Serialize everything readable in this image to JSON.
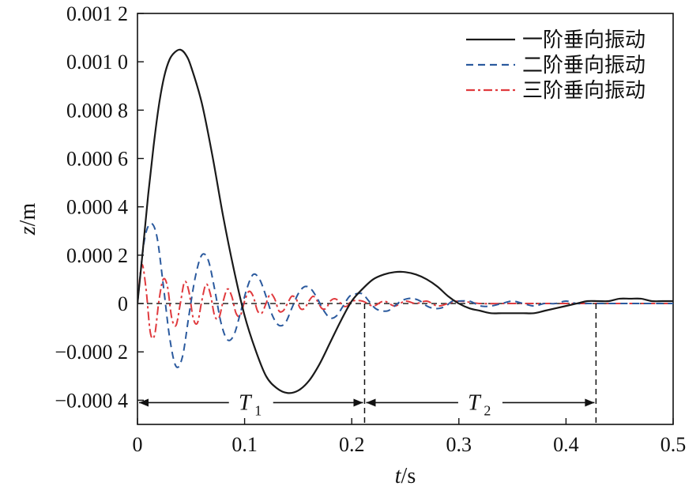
{
  "chart_data": {
    "type": "line",
    "xlabel": "t/s",
    "ylabel": "z/m",
    "xlim": [
      0,
      0.5
    ],
    "ylim": [
      -0.0005,
      0.0012
    ],
    "xticks": [
      0,
      0.1,
      0.2,
      0.3,
      0.4,
      0.5
    ],
    "xtick_labels": [
      "0",
      "0.1",
      "0.2",
      "0.3",
      "0.4",
      "0.5"
    ],
    "yticks": [
      -0.0004,
      -0.0002,
      0,
      0.0002,
      0.0004,
      0.0006,
      0.0008,
      0.001,
      0.0012
    ],
    "ytick_labels": [
      "−0.000 4",
      "−0.000 2",
      "0",
      "0.000 2",
      "0.000 4",
      "0.000 6",
      "0.000 8",
      "0.001 0",
      "0.001 2"
    ],
    "grid": false,
    "legend_position": "top-right",
    "zero_line": true,
    "series": [
      {
        "name": "一阶垂向振动",
        "color": "#1a1a1a",
        "style": "solid",
        "x": [
          0,
          0.005,
          0.01,
          0.015,
          0.02,
          0.025,
          0.03,
          0.035,
          0.04,
          0.045,
          0.05,
          0.06,
          0.07,
          0.08,
          0.09,
          0.1,
          0.11,
          0.12,
          0.13,
          0.14,
          0.15,
          0.16,
          0.17,
          0.18,
          0.19,
          0.2,
          0.21,
          0.22,
          0.23,
          0.24,
          0.25,
          0.26,
          0.27,
          0.28,
          0.29,
          0.3,
          0.31,
          0.32,
          0.33,
          0.34,
          0.35,
          0.36,
          0.37,
          0.38,
          0.39,
          0.4,
          0.41,
          0.42,
          0.43,
          0.44,
          0.45,
          0.46,
          0.47,
          0.48,
          0.49,
          0.5
        ],
        "y": [
          0,
          0.00022,
          0.00045,
          0.00065,
          0.00082,
          0.00094,
          0.00101,
          0.00104,
          0.00105,
          0.00103,
          0.00098,
          0.00083,
          0.00061,
          0.00036,
          0.00014,
          -5e-05,
          -0.00019,
          -0.0003,
          -0.00035,
          -0.00037,
          -0.00036,
          -0.00032,
          -0.00025,
          -0.00016,
          -7e-05,
          1e-05,
          6e-05,
          0.0001,
          0.00012,
          0.00013,
          0.00013,
          0.00012,
          0.0001,
          7e-05,
          3e-05,
          0,
          -2e-05,
          -3e-05,
          -4e-05,
          -4e-05,
          -4e-05,
          -4e-05,
          -4e-05,
          -3e-05,
          -2e-05,
          -1e-05,
          0,
          1e-05,
          1e-05,
          1e-05,
          2e-05,
          2e-05,
          2e-05,
          1e-05,
          1e-05,
          1e-05
        ]
      },
      {
        "name": "二阶垂向振动",
        "color": "#2b5a9e",
        "style": "dashed",
        "x": [
          0,
          0.006,
          0.012,
          0.018,
          0.024,
          0.03,
          0.036,
          0.042,
          0.048,
          0.054,
          0.06,
          0.066,
          0.072,
          0.078,
          0.084,
          0.09,
          0.096,
          0.102,
          0.108,
          0.114,
          0.12,
          0.126,
          0.132,
          0.138,
          0.144,
          0.15,
          0.156,
          0.162,
          0.168,
          0.174,
          0.18,
          0.186,
          0.192,
          0.198,
          0.204,
          0.21,
          0.216,
          0.222,
          0.228,
          0.234,
          0.24,
          0.246,
          0.252,
          0.258,
          0.264,
          0.27,
          0.276,
          0.282,
          0.288,
          0.294,
          0.3,
          0.31,
          0.32,
          0.33,
          0.34,
          0.35,
          0.36,
          0.37,
          0.38,
          0.39,
          0.4,
          0.41,
          0.42,
          0.43,
          0.44,
          0.45,
          0.46,
          0.47,
          0.48,
          0.49,
          0.5
        ],
        "y": [
          0,
          0.00025,
          0.00033,
          0.00028,
          8e-05,
          -0.00014,
          -0.00026,
          -0.00022,
          -5e-05,
          0.00011,
          0.0002,
          0.00018,
          6e-05,
          -8e-05,
          -0.00015,
          -0.00013,
          -4e-05,
          6e-05,
          0.00012,
          0.0001,
          3e-05,
          -5e-05,
          -9e-05,
          -8e-05,
          -2e-05,
          4e-05,
          7e-05,
          6e-05,
          2e-05,
          -3e-05,
          -6e-05,
          -5e-05,
          -1e-05,
          3e-05,
          4e-05,
          4e-05,
          1e-05,
          -2e-05,
          -3e-05,
          -3e-05,
          -1e-05,
          1e-05,
          2e-05,
          2e-05,
          1e-05,
          -1e-05,
          -2e-05,
          -2e-05,
          -1e-05,
          1e-05,
          1e-05,
          1e-05,
          -1e-05,
          -1e-05,
          0,
          1e-05,
          0,
          -1e-05,
          0,
          0,
          1e-05,
          0,
          0,
          0,
          0,
          0,
          0,
          0,
          0,
          0,
          0
        ]
      },
      {
        "name": "三阶垂向振动",
        "color": "#e03a3e",
        "style": "dashdot",
        "x": [
          0,
          0.004,
          0.008,
          0.012,
          0.016,
          0.02,
          0.024,
          0.028,
          0.032,
          0.036,
          0.04,
          0.044,
          0.048,
          0.052,
          0.056,
          0.06,
          0.064,
          0.068,
          0.072,
          0.076,
          0.08,
          0.084,
          0.088,
          0.092,
          0.096,
          0.1,
          0.104,
          0.108,
          0.112,
          0.116,
          0.12,
          0.124,
          0.128,
          0.132,
          0.136,
          0.14,
          0.144,
          0.148,
          0.152,
          0.156,
          0.16,
          0.164,
          0.168,
          0.172,
          0.176,
          0.18,
          0.184,
          0.188,
          0.192,
          0.196,
          0.2,
          0.21,
          0.22,
          0.23,
          0.24,
          0.25,
          0.26,
          0.27,
          0.28,
          0.29,
          0.3,
          0.32,
          0.34,
          0.36,
          0.38,
          0.4,
          0.42,
          0.44,
          0.46,
          0.48,
          0.5
        ],
        "y": [
          0,
          0.00016,
          6e-05,
          -0.00012,
          -0.00013,
          1e-05,
          0.0001,
          7e-05,
          -6e-05,
          -9e-05,
          0,
          9e-05,
          5e-05,
          -6e-05,
          -8e-05,
          1e-05,
          8e-05,
          4e-05,
          -5e-05,
          -6e-05,
          1e-05,
          6e-05,
          3e-05,
          -4e-05,
          -5e-05,
          1e-05,
          5e-05,
          3e-05,
          -3e-05,
          -4e-05,
          0,
          4e-05,
          2e-05,
          -3e-05,
          -3e-05,
          0,
          3e-05,
          2e-05,
          -2e-05,
          -2e-05,
          1e-05,
          3e-05,
          1e-05,
          -2e-05,
          -2e-05,
          1e-05,
          2e-05,
          1e-05,
          -1e-05,
          -1e-05,
          1e-05,
          1e-05,
          -1e-05,
          1e-05,
          -1e-05,
          1e-05,
          0,
          1e-05,
          -1e-05,
          0,
          1e-05,
          0,
          0,
          0,
          0,
          0,
          0,
          0,
          0,
          0,
          0
        ]
      }
    ],
    "annotations": [
      {
        "label": "T",
        "subscript": "1",
        "x_start": 0,
        "x_end": 0.212
      },
      {
        "label": "T",
        "subscript": "2",
        "x_start": 0.212,
        "x_end": 0.428
      }
    ],
    "annotation_y": -0.00041,
    "vlines": [
      0.212,
      0.428
    ]
  }
}
